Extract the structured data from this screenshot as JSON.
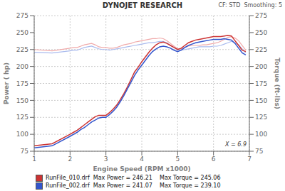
{
  "chart_data": {
    "type": "line",
    "title": "DYNOJET RESEARCH",
    "subtitle": "CF: STD  Smoothing: 5",
    "x_label": "Engine Speed (RPM x1000)",
    "y_label": "Power ( hp)",
    "y2_label": "Torque (ft-lbs)",
    "x": [
      1.0,
      1.5,
      2.0,
      2.1,
      2.2,
      2.3,
      2.4,
      2.5,
      2.6,
      2.7,
      2.8,
      2.9,
      3.0,
      3.1,
      3.2,
      3.3,
      3.4,
      3.5,
      3.6,
      3.7,
      3.8,
      3.9,
      4.0,
      4.1,
      4.2,
      4.3,
      4.4,
      4.5,
      4.6,
      4.7,
      4.8,
      4.9,
      5.0,
      5.1,
      5.2,
      5.3,
      5.4,
      5.5,
      5.6,
      5.7,
      5.8,
      5.9,
      6.0,
      6.1,
      6.2,
      6.3,
      6.4,
      6.5,
      6.6,
      6.7,
      6.8,
      6.9
    ],
    "xlim": [
      1,
      7
    ],
    "xticks": [
      1,
      2,
      3,
      4,
      5,
      6,
      7
    ],
    "ylim": [
      75,
      275
    ],
    "yticks": [
      75,
      100,
      125,
      150,
      175,
      200,
      225,
      250,
      275
    ],
    "y2lim": [
      75,
      275
    ],
    "y2ticks": [
      75,
      100,
      125,
      150,
      175,
      200,
      225,
      250,
      275
    ],
    "grid": true,
    "legend": "bottom",
    "annotations": [
      {
        "text": "X = 6.9"
      }
    ],
    "series": [
      {
        "color": "#f0aaaa",
        "axis": "y2",
        "values": [
          225,
          223,
          227,
          228,
          228,
          230,
          232,
          233,
          234,
          232,
          229,
          228,
          228,
          227,
          227,
          228,
          230,
          232,
          233,
          234,
          236,
          237,
          238,
          239,
          240,
          241,
          241,
          242,
          241,
          238,
          234,
          230,
          226,
          226,
          228,
          230,
          231,
          231,
          231,
          232,
          232,
          233,
          234,
          235,
          237,
          240,
          243,
          244,
          242,
          238,
          231,
          224
        ]
      },
      {
        "color": "#aabbee",
        "axis": "y2",
        "values": [
          221,
          220,
          223,
          224,
          224,
          226,
          228,
          229,
          230,
          228,
          226,
          225,
          225,
          224,
          225,
          226,
          227,
          228,
          229,
          230,
          231,
          232,
          233,
          234,
          235,
          235,
          236,
          237,
          237,
          235,
          231,
          228,
          224,
          224,
          225,
          226,
          227,
          228,
          229,
          229,
          229,
          229,
          230,
          230,
          231,
          233,
          235,
          237,
          235,
          232,
          226,
          220
        ]
      },
      {
        "name": "RunFile_010.drf  Max Power = 246.21    Max Torque = 245.06",
        "color": "#cc3333",
        "values": [
          83,
          86,
          100,
          103,
          106,
          110,
          114,
          118,
          122,
          126,
          128,
          128,
          128,
          132,
          137,
          143,
          151,
          160,
          170,
          181,
          192,
          199,
          207,
          214,
          221,
          227,
          232,
          235,
          236,
          234,
          231,
          228,
          225,
          227,
          231,
          235,
          237,
          239,
          240,
          241,
          242,
          243,
          244,
          244,
          244,
          245,
          246,
          245,
          238,
          231,
          224,
          222
        ]
      },
      {
        "name": "RunFile_002.drf  Max Power = 241.07    Max Torque = 239.10",
        "color": "#3355cc",
        "values": [
          80,
          83,
          97,
          100,
          103,
          107,
          110,
          114,
          118,
          121,
          124,
          125,
          125,
          129,
          134,
          140,
          148,
          157,
          167,
          177,
          187,
          195,
          202,
          209,
          216,
          222,
          226,
          229,
          230,
          229,
          227,
          224,
          222,
          224,
          228,
          231,
          233,
          235,
          236,
          237,
          238,
          239,
          240,
          240,
          240,
          241,
          240,
          239,
          234,
          227,
          220,
          217
        ]
      }
    ]
  }
}
